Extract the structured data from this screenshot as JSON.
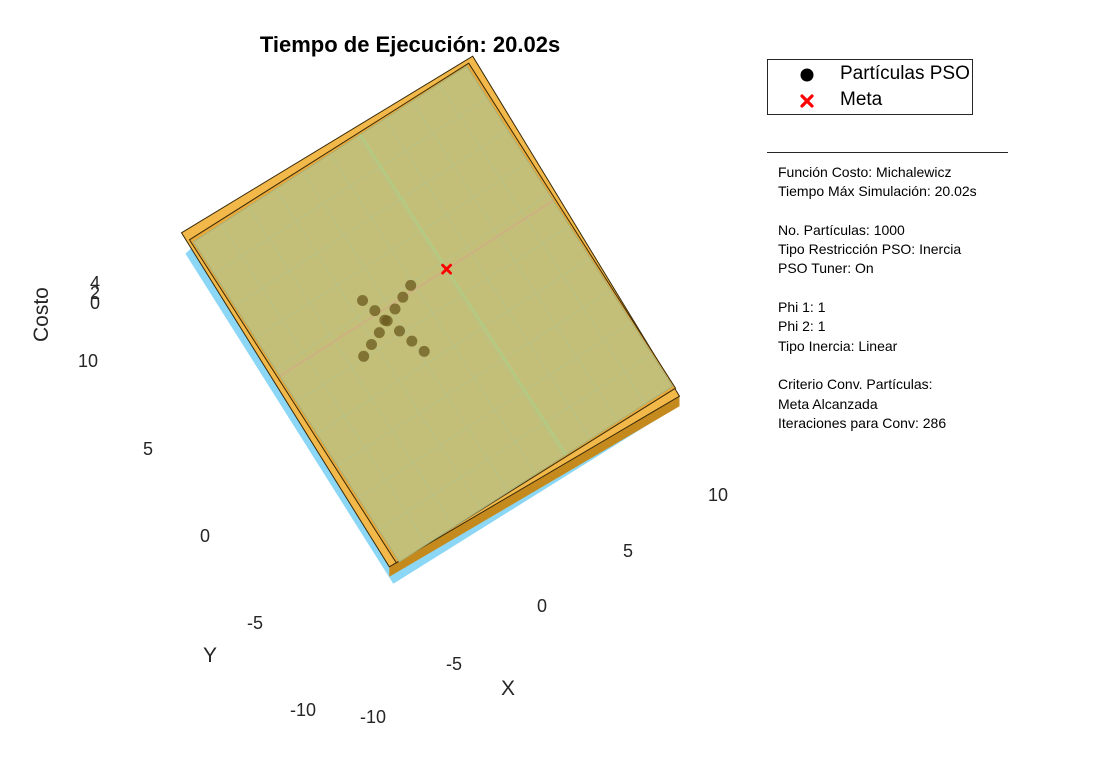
{
  "chart_data": {
    "type": "scatter",
    "title": "Tiempo de Ejecución: 20.02s",
    "xlabel": "X",
    "ylabel": "Y",
    "zlabel": "Costo",
    "xlim": [
      -10,
      10
    ],
    "ylim": [
      -10,
      10
    ],
    "x_ticks": [
      "-10",
      "-5",
      "0",
      "5",
      "10"
    ],
    "y_ticks": [
      "-10",
      "-5",
      "0",
      "5",
      "10"
    ],
    "z_ticks": [
      "0",
      "2",
      "4"
    ],
    "legend": {
      "position": "top-right",
      "entries": [
        {
          "label": "Partículas PSO",
          "marker": "filled-circle",
          "color": "#000000"
        },
        {
          "label": "Meta",
          "marker": "x",
          "color": "#ff0000"
        }
      ]
    },
    "series": [
      {
        "name": "Meta",
        "points": [
          {
            "x": 2.2,
            "y": 1.6
          }
        ]
      },
      {
        "name": "Partículas PSO",
        "points": [
          {
            "x": -2.6,
            "y": 1.0
          },
          {
            "x": -2.9,
            "y": 1.8
          },
          {
            "x": -3.2,
            "y": 2.6
          },
          {
            "x": -2.3,
            "y": 0.2
          },
          {
            "x": -2.0,
            "y": -0.6
          },
          {
            "x": -1.7,
            "y": -1.4
          },
          {
            "x": -1.8,
            "y": 1.3
          },
          {
            "x": -1.0,
            "y": 1.6
          },
          {
            "x": -0.2,
            "y": 1.9
          },
          {
            "x": -3.4,
            "y": 0.7
          },
          {
            "x": -4.2,
            "y": 0.4
          },
          {
            "x": -5.0,
            "y": 0.1
          },
          {
            "x": -2.7,
            "y": 1.1
          }
        ]
      }
    ]
  },
  "colors": {
    "surface": "#c4bf78",
    "surface_edge": "#a7b27a",
    "frame": "#f2b94a",
    "frame_dark": "#c58a1e",
    "base": "#7fd3f5",
    "particles": "#6b5a1e",
    "goal": "#ff0000"
  },
  "info": {
    "lines": [
      "Función Costo: Michalewicz",
      "Tiempo Máx Simulación: 20.02s",
      "",
      "No. Partículas: 1000",
      "Tipo Restricción PSO: Inercia",
      "PSO Tuner: On",
      "",
      "Phi 1: 1",
      "Phi 2: 1",
      "Tipo Inercia: Linear",
      "",
      "Criterio Conv. Partículas:",
      "Meta Alcanzada",
      "Iteraciones para Conv: 286"
    ]
  }
}
